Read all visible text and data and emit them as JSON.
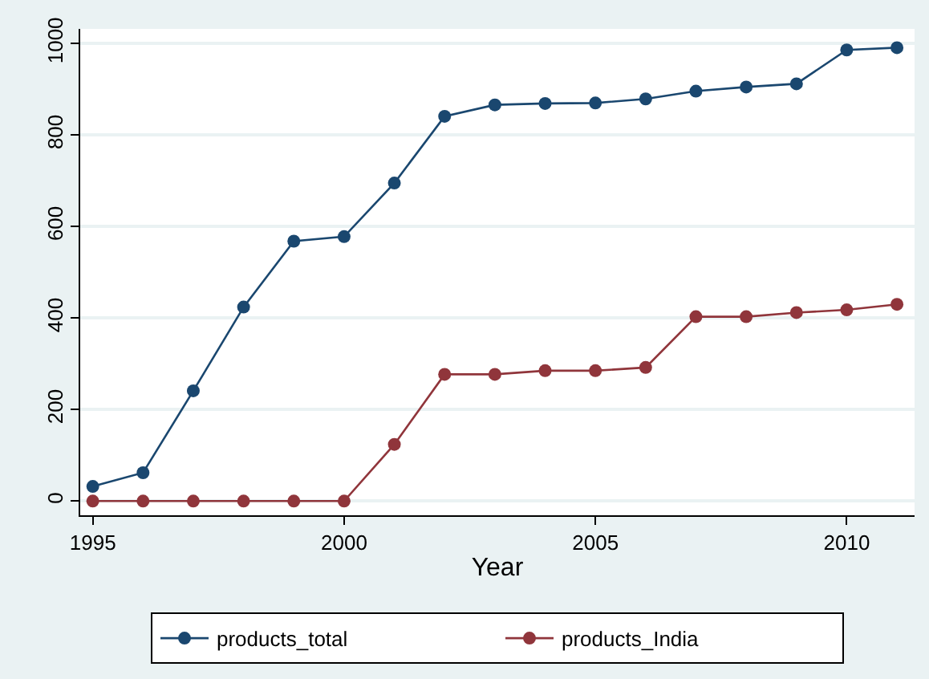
{
  "chart_data": {
    "type": "line",
    "xlabel": "Year",
    "x": [
      1995,
      1996,
      1997,
      1998,
      1999,
      2000,
      2001,
      2002,
      2003,
      2004,
      2005,
      2006,
      2007,
      2008,
      2009,
      2010,
      2011
    ],
    "series": [
      {
        "name": "products_total",
        "color": "#1a476f",
        "values": [
          32,
          62,
          241,
          424,
          568,
          578,
          695,
          841,
          866,
          869,
          870,
          879,
          896,
          905,
          912,
          986,
          991
        ]
      },
      {
        "name": "products_India",
        "color": "#90353b",
        "values": [
          0,
          0,
          0,
          0,
          0,
          0,
          124,
          277,
          277,
          285,
          285,
          292,
          403,
          403,
          412,
          418,
          430
        ]
      }
    ],
    "xlim": [
      1994.75,
      2011.35
    ],
    "xticks": [
      1995,
      2000,
      2005,
      2010
    ],
    "ylim": [
      -31,
      1032
    ],
    "yticks": [
      0,
      200,
      400,
      600,
      800,
      1000
    ],
    "grid": "y",
    "legend": "bottom",
    "marker": "circle",
    "line_style": "solid"
  }
}
